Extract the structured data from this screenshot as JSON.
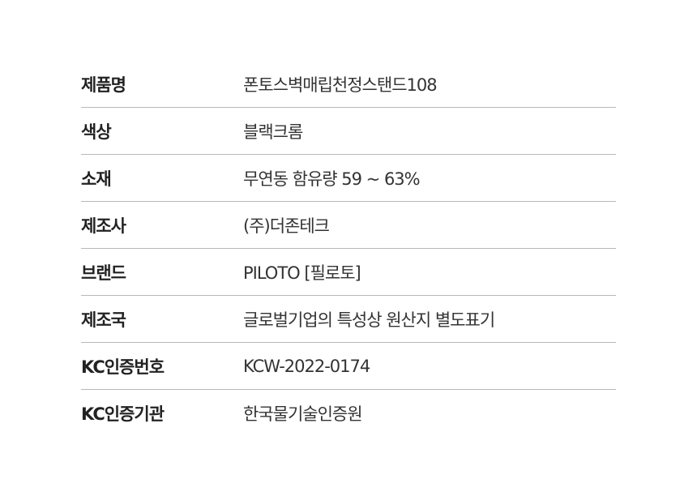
{
  "specs": [
    {
      "label": "제품명",
      "value": "폰토스벽매립천정스탠드108"
    },
    {
      "label": "색상",
      "value": "블랙크롬"
    },
    {
      "label": "소재",
      "value": "무연동 함유량 59 ~ 63%"
    },
    {
      "label": "제조사",
      "value": "(주)더존테크"
    },
    {
      "label": "브랜드",
      "value": "PILOTO [필로토]"
    },
    {
      "label": "제조국",
      "value": "글로벌기업의 특성상 원산지 별도표기"
    },
    {
      "label": "KC인증번호",
      "value": "KCW-2022-0174"
    },
    {
      "label": "KC인증기관",
      "value": "한국물기술인증원"
    }
  ]
}
